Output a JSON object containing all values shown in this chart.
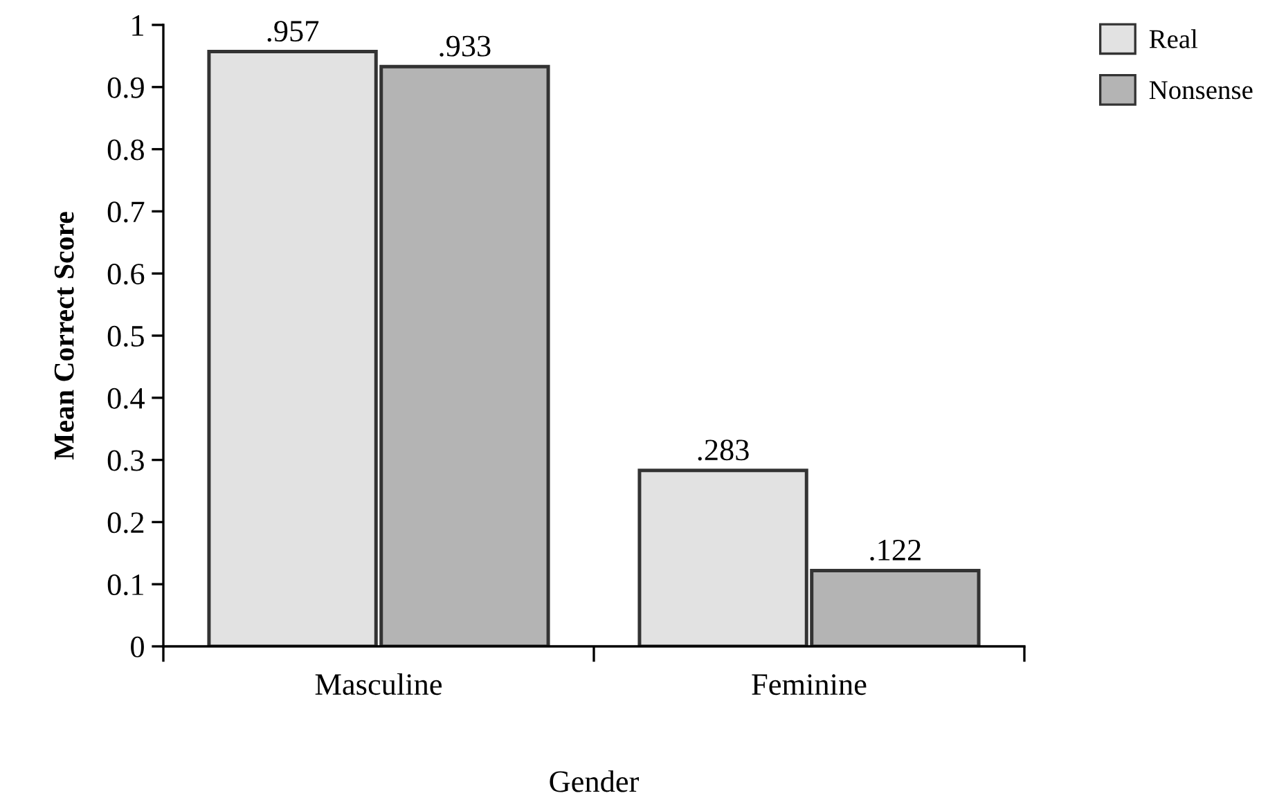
{
  "chart_data": {
    "type": "bar",
    "xlabel": "Gender",
    "ylabel": "Mean Correct Score",
    "categories": [
      "Masculine",
      "Feminine"
    ],
    "series": [
      {
        "name": "Real",
        "color": "#e2e2e2",
        "values": [
          0.957,
          0.283
        ],
        "value_labels": [
          ".957",
          ".283"
        ]
      },
      {
        "name": "Nonsense",
        "color": "#b4b4b4",
        "values": [
          0.933,
          0.122
        ],
        "value_labels": [
          ".933",
          ".122"
        ]
      }
    ],
    "ylim": [
      0,
      1
    ],
    "yticks": [
      0,
      0.1,
      0.2,
      0.3,
      0.4,
      0.5,
      0.6,
      0.7,
      0.8,
      0.9,
      1
    ],
    "grid": false,
    "legend": "top right"
  }
}
